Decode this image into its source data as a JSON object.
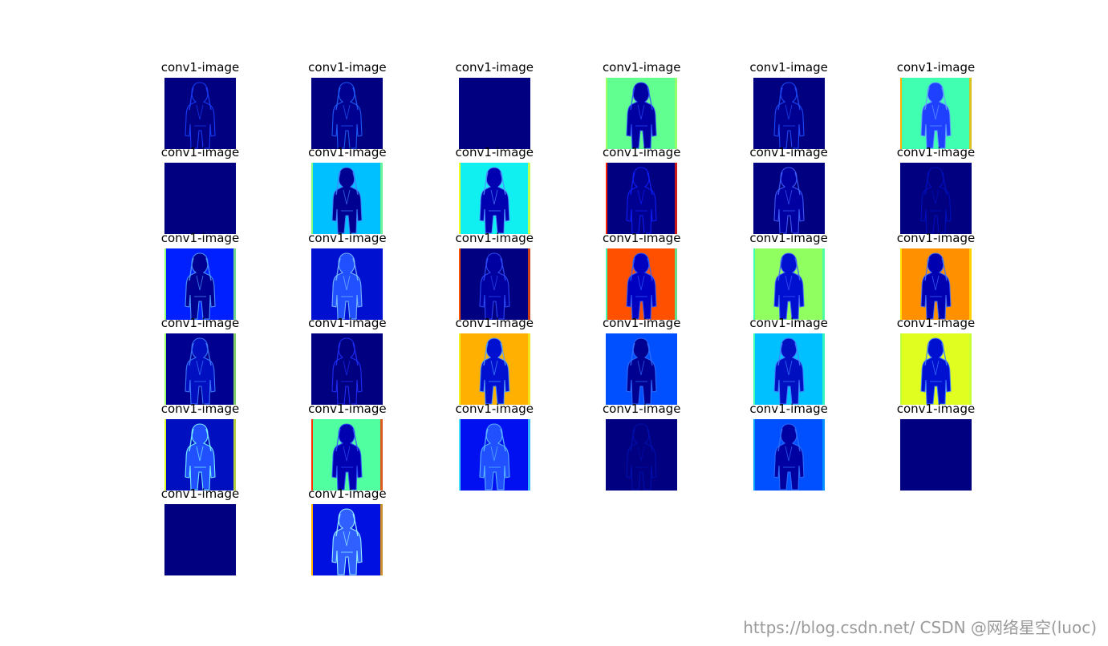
{
  "figure": {
    "columns": 6,
    "panels": [
      {
        "title": "conv1-image",
        "background": "#000080",
        "figure": "#000080",
        "outline": "#1a40ff",
        "accent": ""
      },
      {
        "title": "conv1-image",
        "background": "#000080",
        "figure": "#000090",
        "outline": "#2060ff",
        "accent": ""
      },
      {
        "title": "conv1-image",
        "background": "#000080",
        "figure": "#000080",
        "outline": "",
        "accent": ""
      },
      {
        "title": "conv1-image",
        "background": "#60ff90",
        "figure": "#0000a0",
        "outline": "#3050ff",
        "accent": "#a0ff60"
      },
      {
        "title": "conv1-image",
        "background": "#000080",
        "figure": "#000090",
        "outline": "#2050ff",
        "accent": ""
      },
      {
        "title": "conv1-image",
        "background": "#40ffb0",
        "figure": "#2040ff",
        "outline": "#60a0ff",
        "accent": "#ffb000"
      },
      {
        "title": "conv1-image",
        "background": "#000080",
        "figure": "#000080",
        "outline": "",
        "accent": ""
      },
      {
        "title": "conv1-image",
        "background": "#00c0ff",
        "figure": "#000090",
        "outline": "#4080ff",
        "accent": "#80ff80"
      },
      {
        "title": "conv1-image",
        "background": "#10f0f0",
        "figure": "#0000b0",
        "outline": "#5090ff",
        "accent": "#f0ff20"
      },
      {
        "title": "conv1-image",
        "background": "#000080",
        "figure": "#000090",
        "outline": "#1020ff",
        "accent": "#ff2000"
      },
      {
        "title": "conv1-image",
        "background": "#000080",
        "figure": "#0000a0",
        "outline": "#4060ff",
        "accent": ""
      },
      {
        "title": "conv1-image",
        "background": "#000080",
        "figure": "#000080",
        "outline": "#0010c0",
        "accent": ""
      },
      {
        "title": "conv1-image",
        "background": "#0020ff",
        "figure": "#000090",
        "outline": "#50a0ff",
        "accent": "#90ff70"
      },
      {
        "title": "conv1-image",
        "background": "#0010d0",
        "figure": "#2050ff",
        "outline": "#80c0ff",
        "accent": ""
      },
      {
        "title": "conv1-image",
        "background": "#000080",
        "figure": "#0000a0",
        "outline": "#3050ff",
        "accent": "#ff5000"
      },
      {
        "title": "conv1-image",
        "background": "#ff5000",
        "figure": "#0000c0",
        "outline": "#3060ff",
        "accent": "#40ffb0"
      },
      {
        "title": "conv1-image",
        "background": "#90ff60",
        "figure": "#0010d0",
        "outline": "#4060ff",
        "accent": "#40ffb0"
      },
      {
        "title": "conv1-image",
        "background": "#ff9000",
        "figure": "#0000b0",
        "outline": "#4070ff",
        "accent": "#ffe000"
      },
      {
        "title": "conv1-image",
        "background": "#000090",
        "figure": "#0010c0",
        "outline": "#4080ff",
        "accent": "#a0ff60"
      },
      {
        "title": "conv1-image",
        "background": "#000080",
        "figure": "#000080",
        "outline": "#2030ff",
        "accent": ""
      },
      {
        "title": "conv1-image",
        "background": "#ffb000",
        "figure": "#0010d0",
        "outline": "#50a0ff",
        "accent": "#f0f020"
      },
      {
        "title": "conv1-image",
        "background": "#0050ff",
        "figure": "#000090",
        "outline": "#3070ff",
        "accent": ""
      },
      {
        "title": "conv1-image",
        "background": "#00c0ff",
        "figure": "#0010c0",
        "outline": "#4080ff",
        "accent": "#40ffb0"
      },
      {
        "title": "conv1-image",
        "background": "#e0ff20",
        "figure": "#0010d0",
        "outline": "#4080ff",
        "accent": "#c0ff40"
      },
      {
        "title": "conv1-image",
        "background": "#0010c0",
        "figure": "#2050ff",
        "outline": "#80ffff",
        "accent": "#e0ff20"
      },
      {
        "title": "conv1-image",
        "background": "#50ff9f",
        "figure": "#0000b0",
        "outline": "#3050ff",
        "accent": "#ff3000"
      },
      {
        "title": "conv1-image",
        "background": "#0010f0",
        "figure": "#2050ff",
        "outline": "#60c0ff",
        "accent": "#40e0ff"
      },
      {
        "title": "conv1-image",
        "background": "#000080",
        "figure": "#000080",
        "outline": "#0010b0",
        "accent": ""
      },
      {
        "title": "conv1-image",
        "background": "#0050ff",
        "figure": "#0000a0",
        "outline": "#3070ff",
        "accent": "#00a0ff"
      },
      {
        "title": "conv1-image",
        "background": "#000080",
        "figure": "#000080",
        "outline": "",
        "accent": ""
      },
      {
        "title": "conv1-image",
        "background": "#000080",
        "figure": "#000080",
        "outline": "",
        "accent": ""
      },
      {
        "title": "conv1-image",
        "background": "#0010e0",
        "figure": "#3060ff",
        "outline": "#a0ffff",
        "accent": "#ffb000"
      }
    ]
  },
  "watermark": "https://blog.csdn.net/  CSDN @网络星空(luoc)"
}
